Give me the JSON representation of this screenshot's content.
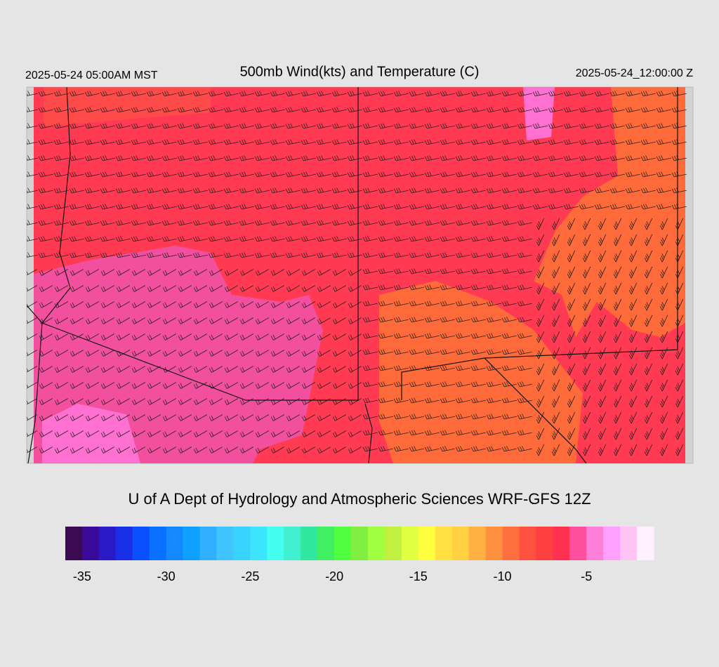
{
  "header": {
    "left": "2025-05-24 05:00AM MST",
    "title": "500mb Wind(kts) and Temperature (C)",
    "right": "2025-05-24_12:00:00 Z"
  },
  "credit": "U of A Dept of Hydrology and Atmospheric Sciences WRF-GFS 12Z",
  "colorbar": {
    "range": [
      -36,
      -1
    ],
    "ticks": [
      -35,
      -30,
      -25,
      -20,
      -15,
      -10,
      -5
    ],
    "colors": [
      "#3c0a52",
      "#3a0a9a",
      "#2a1ac8",
      "#1a30e8",
      "#0a50ff",
      "#0a70ff",
      "#1488ff",
      "#10a0ff",
      "#30b0ff",
      "#40c4ff",
      "#38d4ff",
      "#3ce4ff",
      "#44fff0",
      "#40f0d0",
      "#30e8a0",
      "#40f060",
      "#50ff40",
      "#80f040",
      "#a0ff40",
      "#c0f040",
      "#e0ff40",
      "#ffff40",
      "#ffe040",
      "#ffd040",
      "#ffb040",
      "#ff9040",
      "#ff7040",
      "#ff5040",
      "#ff4040",
      "#ff3050",
      "#ff50a0",
      "#ff80d8",
      "#ffa0ff",
      "#ffc4f4",
      "#fff0ff"
    ]
  }
}
